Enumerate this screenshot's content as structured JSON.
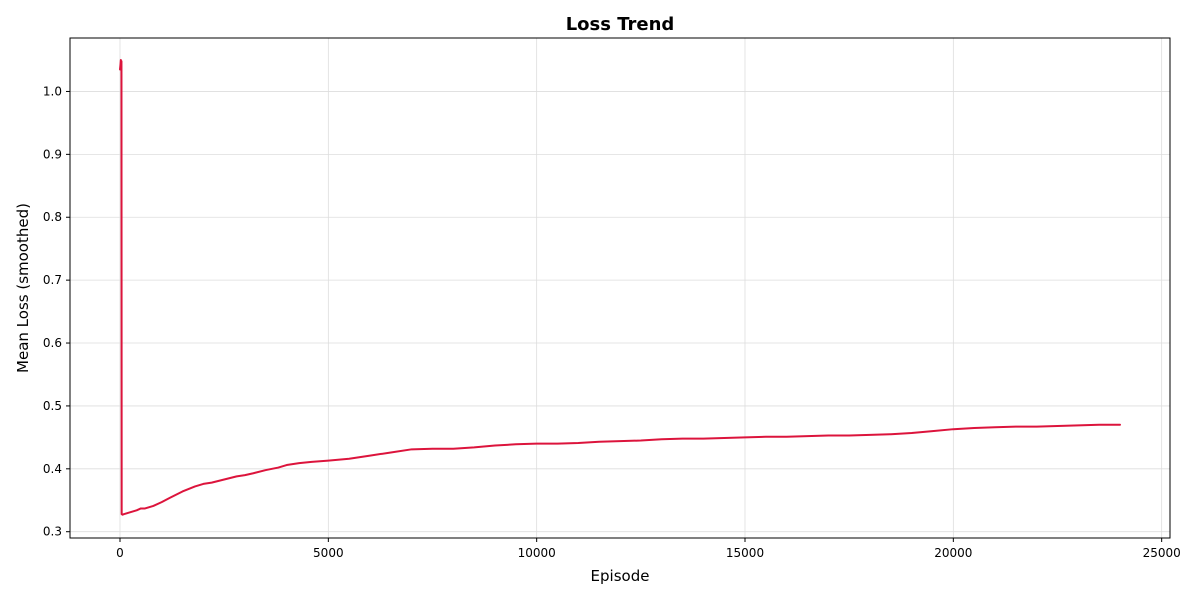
{
  "chart_data": {
    "type": "line",
    "title": "Loss Trend",
    "xlabel": "Episode",
    "ylabel": "Mean Loss (smoothed)",
    "xlim": [
      -1200,
      25200
    ],
    "ylim": [
      0.29,
      1.085
    ],
    "xticks": [
      0,
      5000,
      10000,
      15000,
      20000,
      25000
    ],
    "xtick_labels": [
      "0",
      "5000",
      "10000",
      "15000",
      "20000",
      "25000"
    ],
    "yticks": [
      0.3,
      0.4,
      0.5,
      0.6,
      0.7,
      0.8,
      0.9,
      1.0
    ],
    "ytick_labels": [
      "0.3",
      "0.4",
      "0.5",
      "0.6",
      "0.7",
      "0.8",
      "0.9",
      "1.0"
    ],
    "grid": true,
    "legend": false,
    "series": [
      {
        "color": "#dc143c",
        "x": [
          0,
          10,
          20,
          30,
          35,
          40,
          60,
          100,
          200,
          300,
          400,
          500,
          600,
          800,
          1000,
          1200,
          1500,
          1800,
          2000,
          2200,
          2500,
          2800,
          3000,
          3200,
          3500,
          3800,
          4000,
          4300,
          4600,
          5000,
          5500,
          6000,
          6500,
          7000,
          7500,
          8000,
          8500,
          9000,
          9500,
          10000,
          10500,
          11000,
          11500,
          12000,
          12500,
          13000,
          13500,
          14000,
          14500,
          15000,
          15500,
          16000,
          16500,
          17000,
          17500,
          18000,
          18500,
          19000,
          19500,
          20000,
          20500,
          21000,
          21500,
          22000,
          22500,
          23000,
          23500,
          24000
        ],
        "y": [
          1.035,
          1.042,
          1.05,
          1.045,
          1.048,
          0.328,
          0.327,
          0.328,
          0.33,
          0.332,
          0.334,
          0.337,
          0.337,
          0.341,
          0.347,
          0.354,
          0.364,
          0.372,
          0.376,
          0.378,
          0.383,
          0.388,
          0.39,
          0.393,
          0.398,
          0.402,
          0.406,
          0.409,
          0.411,
          0.413,
          0.416,
          0.421,
          0.426,
          0.431,
          0.432,
          0.432,
          0.434,
          0.437,
          0.439,
          0.44,
          0.44,
          0.441,
          0.443,
          0.444,
          0.445,
          0.447,
          0.448,
          0.448,
          0.449,
          0.45,
          0.451,
          0.451,
          0.452,
          0.453,
          0.453,
          0.454,
          0.455,
          0.457,
          0.46,
          0.463,
          0.465,
          0.466,
          0.467,
          0.467,
          0.468,
          0.469,
          0.47,
          0.47
        ]
      }
    ]
  }
}
